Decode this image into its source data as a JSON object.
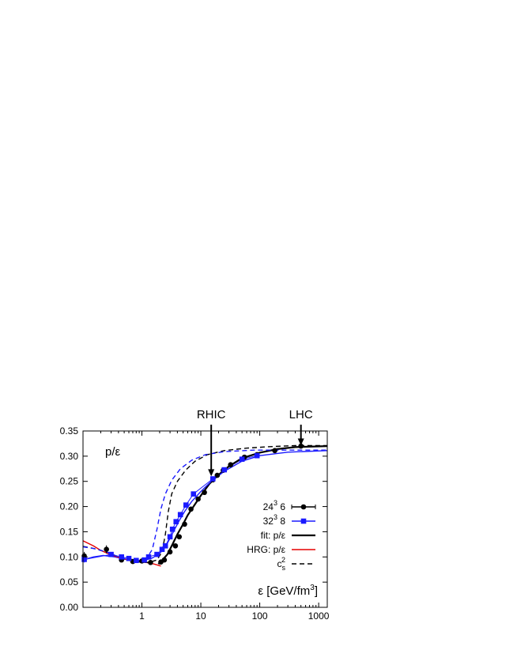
{
  "chart_data": {
    "type": "line",
    "x_scale": "log",
    "xlim": [
      0.1,
      1400
    ],
    "ylim": [
      0.0,
      0.35
    ],
    "x_ticks": [
      {
        "value": 1,
        "label": "1"
      },
      {
        "value": 10,
        "label": "10"
      },
      {
        "value": 100,
        "label": "100"
      },
      {
        "value": 1000,
        "label": "1000"
      }
    ],
    "y_ticks": [
      {
        "value": 0.0,
        "label": "0.00"
      },
      {
        "value": 0.05,
        "label": "0.05"
      },
      {
        "value": 0.1,
        "label": "0.10"
      },
      {
        "value": 0.15,
        "label": "0.15"
      },
      {
        "value": 0.2,
        "label": "0.20"
      },
      {
        "value": 0.25,
        "label": "0.25"
      },
      {
        "value": 0.3,
        "label": "0.30"
      },
      {
        "value": 0.35,
        "label": "0.35"
      }
    ],
    "ylabel": "p/ε",
    "xlabel": {
      "base": "ε [GeV/fm",
      "sup": "3",
      "tail": "]"
    },
    "grid": false,
    "legend_position": "right",
    "annotations": [
      {
        "text": "RHIC",
        "x": 15,
        "y_arrow_end": 0.26
      },
      {
        "text": "LHC",
        "x": 500,
        "y_arrow_end": 0.321
      }
    ],
    "series": [
      {
        "key": "n6",
        "legend": {
          "base": "24",
          "sup": "3",
          "tail": " 6"
        },
        "style": "points-errorbars",
        "marker": "circle",
        "color": "#000000",
        "points": [
          {
            "x": 0.105,
            "y": 0.102,
            "err": 0.008
          },
          {
            "x": 0.25,
            "y": 0.115,
            "err": 0.008
          },
          {
            "x": 0.45,
            "y": 0.094,
            "err": 0.004
          },
          {
            "x": 0.7,
            "y": 0.091,
            "err": 0.003
          },
          {
            "x": 1.0,
            "y": 0.092,
            "err": 0.002
          },
          {
            "x": 1.4,
            "y": 0.089,
            "err": 0.002
          },
          {
            "x": 2.1,
            "y": 0.09,
            "err": 0.002
          },
          {
            "x": 2.4,
            "y": 0.094,
            "err": 0.002
          },
          {
            "x": 3.0,
            "y": 0.11,
            "err": 0.002
          },
          {
            "x": 3.7,
            "y": 0.122,
            "err": 0.002
          },
          {
            "x": 4.3,
            "y": 0.14,
            "err": 0.002
          },
          {
            "x": 5.3,
            "y": 0.165,
            "err": 0.002
          },
          {
            "x": 6.8,
            "y": 0.195,
            "err": 0.002
          },
          {
            "x": 9.0,
            "y": 0.215,
            "err": 0.002
          },
          {
            "x": 11.5,
            "y": 0.228,
            "err": 0.002
          },
          {
            "x": 16.0,
            "y": 0.253,
            "err": 0.002
          },
          {
            "x": 19.0,
            "y": 0.262,
            "err": 0.002
          },
          {
            "x": 24.0,
            "y": 0.272,
            "err": 0.002
          },
          {
            "x": 32.0,
            "y": 0.283,
            "err": 0.002
          },
          {
            "x": 55.0,
            "y": 0.298,
            "err": 0.002
          },
          {
            "x": 90.0,
            "y": 0.303,
            "err": 0.002
          },
          {
            "x": 180.0,
            "y": 0.311,
            "err": 0.002
          },
          {
            "x": 500.0,
            "y": 0.32,
            "err": 0.002
          }
        ]
      },
      {
        "key": "n8",
        "legend": {
          "base": "32",
          "sup": "3",
          "tail": " 8"
        },
        "style": "points-lines",
        "marker": "square",
        "color": "#1a1aff",
        "points": [
          {
            "x": 0.105,
            "y": 0.095,
            "err": 0.006
          },
          {
            "x": 0.3,
            "y": 0.105,
            "err": 0.004
          },
          {
            "x": 0.45,
            "y": 0.1,
            "err": 0.004
          },
          {
            "x": 0.6,
            "y": 0.097,
            "err": 0.003
          },
          {
            "x": 0.8,
            "y": 0.093,
            "err": 0.003
          },
          {
            "x": 1.1,
            "y": 0.094,
            "err": 0.002
          },
          {
            "x": 1.3,
            "y": 0.1,
            "err": 0.002
          },
          {
            "x": 1.8,
            "y": 0.105,
            "err": 0.002
          },
          {
            "x": 2.2,
            "y": 0.115,
            "err": 0.002
          },
          {
            "x": 2.5,
            "y": 0.122,
            "err": 0.002
          },
          {
            "x": 3.0,
            "y": 0.14,
            "err": 0.002
          },
          {
            "x": 3.3,
            "y": 0.155,
            "err": 0.002
          },
          {
            "x": 3.8,
            "y": 0.17,
            "err": 0.002
          },
          {
            "x": 4.5,
            "y": 0.184,
            "err": 0.002
          },
          {
            "x": 5.6,
            "y": 0.203,
            "err": 0.002
          },
          {
            "x": 7.5,
            "y": 0.225,
            "err": 0.002
          },
          {
            "x": 16.0,
            "y": 0.255,
            "err": 0.002
          },
          {
            "x": 25.0,
            "y": 0.273,
            "err": 0.002
          },
          {
            "x": 50.0,
            "y": 0.294,
            "err": 0.002
          },
          {
            "x": 90.0,
            "y": 0.301,
            "err": 0.002
          }
        ]
      },
      {
        "key": "fit",
        "legend": {
          "base": "fit: p/ε",
          "sup": "",
          "tail": ""
        },
        "style": "line",
        "color": "#000000",
        "points": [
          {
            "x": 1.9,
            "y": 0.086
          },
          {
            "x": 2.2,
            "y": 0.093
          },
          {
            "x": 2.7,
            "y": 0.105
          },
          {
            "x": 3.3,
            "y": 0.125
          },
          {
            "x": 4.0,
            "y": 0.145
          },
          {
            "x": 5.0,
            "y": 0.165
          },
          {
            "x": 6.0,
            "y": 0.183
          },
          {
            "x": 7.5,
            "y": 0.2
          },
          {
            "x": 10.0,
            "y": 0.222
          },
          {
            "x": 14.0,
            "y": 0.245
          },
          {
            "x": 20.0,
            "y": 0.263
          },
          {
            "x": 30.0,
            "y": 0.28
          },
          {
            "x": 50.0,
            "y": 0.296
          },
          {
            "x": 100.0,
            "y": 0.307
          },
          {
            "x": 200.0,
            "y": 0.314
          },
          {
            "x": 400.0,
            "y": 0.318
          },
          {
            "x": 1400.0,
            "y": 0.32
          }
        ]
      },
      {
        "key": "fit8",
        "legend": null,
        "style": "line",
        "color": "#1a1aff",
        "points": [
          {
            "x": 0.1,
            "y": 0.094
          },
          {
            "x": 0.15,
            "y": 0.1
          },
          {
            "x": 0.22,
            "y": 0.103
          },
          {
            "x": 0.35,
            "y": 0.1
          },
          {
            "x": 0.55,
            "y": 0.095
          },
          {
            "x": 0.8,
            "y": 0.092
          },
          {
            "x": 1.1,
            "y": 0.093
          },
          {
            "x": 1.5,
            "y": 0.098
          },
          {
            "x": 2.0,
            "y": 0.107
          },
          {
            "x": 2.5,
            "y": 0.12
          },
          {
            "x": 3.0,
            "y": 0.137
          },
          {
            "x": 3.6,
            "y": 0.155
          },
          {
            "x": 4.3,
            "y": 0.172
          },
          {
            "x": 5.3,
            "y": 0.19
          },
          {
            "x": 7.0,
            "y": 0.21
          },
          {
            "x": 10.0,
            "y": 0.23
          },
          {
            "x": 15.0,
            "y": 0.25
          },
          {
            "x": 25.0,
            "y": 0.27
          },
          {
            "x": 50.0,
            "y": 0.29
          },
          {
            "x": 100.0,
            "y": 0.301
          },
          {
            "x": 300.0,
            "y": 0.308
          },
          {
            "x": 1400.0,
            "y": 0.311
          }
        ]
      },
      {
        "key": "hrg",
        "legend": {
          "base": "HRG: p/ε",
          "sup": "",
          "tail": ""
        },
        "style": "line",
        "color": "#e60000",
        "points": [
          {
            "x": 0.1,
            "y": 0.132
          },
          {
            "x": 0.15,
            "y": 0.122
          },
          {
            "x": 0.2,
            "y": 0.113
          },
          {
            "x": 0.3,
            "y": 0.104
          },
          {
            "x": 0.45,
            "y": 0.097
          },
          {
            "x": 0.65,
            "y": 0.093
          },
          {
            "x": 0.9,
            "y": 0.091
          },
          {
            "x": 1.2,
            "y": 0.089
          },
          {
            "x": 1.6,
            "y": 0.086
          },
          {
            "x": 2.1,
            "y": 0.082
          }
        ]
      },
      {
        "key": "cs2",
        "legend": {
          "base": "c",
          "sup": "2",
          "sub": "s",
          "tail": ""
        },
        "style": "dashed",
        "color": "#000000",
        "points": [
          {
            "x": 0.1,
            "y": 0.121
          },
          {
            "x": 0.15,
            "y": 0.117
          },
          {
            "x": 0.25,
            "y": 0.11
          },
          {
            "x": 0.4,
            "y": 0.1
          },
          {
            "x": 0.6,
            "y": 0.093
          },
          {
            "x": 0.9,
            "y": 0.09
          },
          {
            "x": 1.3,
            "y": 0.089
          },
          {
            "x": 1.8,
            "y": 0.094
          },
          {
            "x": 2.2,
            "y": 0.11
          },
          {
            "x": 2.5,
            "y": 0.145
          },
          {
            "x": 2.8,
            "y": 0.19
          },
          {
            "x": 3.2,
            "y": 0.225
          },
          {
            "x": 4.0,
            "y": 0.25
          },
          {
            "x": 5.5,
            "y": 0.272
          },
          {
            "x": 8.0,
            "y": 0.29
          },
          {
            "x": 13.0,
            "y": 0.303
          },
          {
            "x": 25.0,
            "y": 0.311
          },
          {
            "x": 60.0,
            "y": 0.316
          },
          {
            "x": 150.0,
            "y": 0.319
          },
          {
            "x": 400.0,
            "y": 0.321
          },
          {
            "x": 1400.0,
            "y": 0.321
          }
        ]
      },
      {
        "key": "cs2_8",
        "legend": null,
        "style": "dashed",
        "color": "#1a1aff",
        "points": [
          {
            "x": 0.1,
            "y": 0.12
          },
          {
            "x": 0.15,
            "y": 0.117
          },
          {
            "x": 0.25,
            "y": 0.11
          },
          {
            "x": 0.4,
            "y": 0.1
          },
          {
            "x": 0.6,
            "y": 0.094
          },
          {
            "x": 0.9,
            "y": 0.092
          },
          {
            "x": 1.2,
            "y": 0.097
          },
          {
            "x": 1.5,
            "y": 0.115
          },
          {
            "x": 1.8,
            "y": 0.155
          },
          {
            "x": 2.1,
            "y": 0.195
          },
          {
            "x": 2.5,
            "y": 0.225
          },
          {
            "x": 3.2,
            "y": 0.252
          },
          {
            "x": 4.5,
            "y": 0.275
          },
          {
            "x": 7.0,
            "y": 0.292
          },
          {
            "x": 12.0,
            "y": 0.303
          },
          {
            "x": 25.0,
            "y": 0.309
          },
          {
            "x": 80.0,
            "y": 0.312
          },
          {
            "x": 1400.0,
            "y": 0.312
          }
        ]
      }
    ]
  }
}
